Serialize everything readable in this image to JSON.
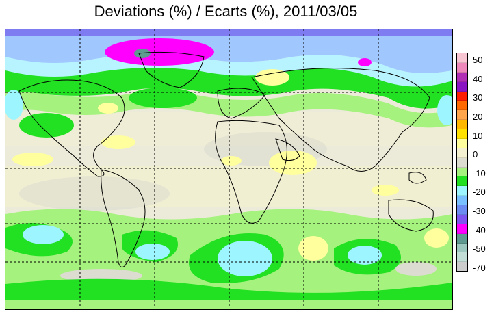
{
  "title": "Deviations (%) / Ecarts (%), 2011/03/05",
  "legend": {
    "colors": [
      "#f7c6d2",
      "#ee88bb",
      "#b02fb4",
      "#8a14c4",
      "#ff1d00",
      "#ff6a00",
      "#ffa64d",
      "#ffb800",
      "#ffe200",
      "#ffff9e",
      "#f4f1d2",
      "#dcdcd0",
      "#a6f27e",
      "#20e020",
      "#9df6ff",
      "#78c0ff",
      "#6d8cf2",
      "#7f55f0",
      "#ff00ff",
      "#5f9a90",
      "#9dc8c0",
      "#c2dcd6",
      "#cccccc"
    ],
    "ticks": [
      {
        "label": "50",
        "value": 50
      },
      {
        "label": "40",
        "value": 40
      },
      {
        "label": "30",
        "value": 30
      },
      {
        "label": "20",
        "value": 20
      },
      {
        "label": "10",
        "value": 10
      },
      {
        "label": "0",
        "value": 0
      },
      {
        "label": "-10",
        "value": -10
      },
      {
        "label": "-20",
        "value": -20
      },
      {
        "label": "-30",
        "value": -30
      },
      {
        "label": "-40",
        "value": -40
      },
      {
        "label": "-50",
        "value": -50
      },
      {
        "label": "-70",
        "value": -70
      }
    ]
  }
}
